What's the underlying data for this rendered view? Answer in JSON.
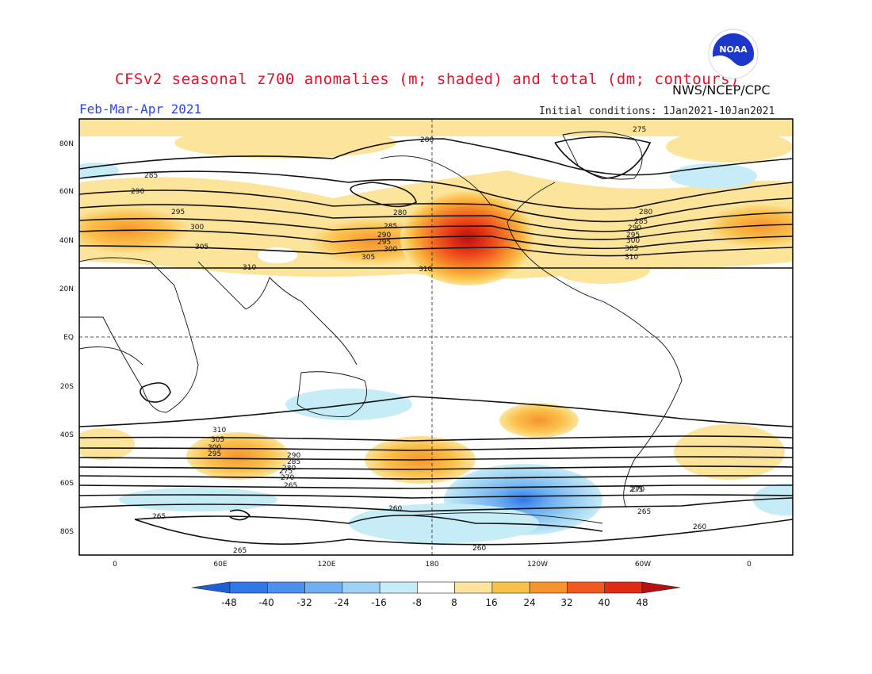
{
  "header": {
    "title": "CFSv2 seasonal z700 anomalies (m; shaded) and total (dm; contours)",
    "agency": "NWS/NCEP/CPC",
    "season": "Feb-Mar-Apr 2021",
    "initial_conditions": "Initial conditions: 1Jan2021-10Jan2021"
  },
  "logo": {
    "icon": "noaa-logo-icon",
    "text": "NOAA"
  },
  "map": {
    "lat_labels": [
      "80N",
      "60N",
      "40N",
      "20N",
      "EQ",
      "20S",
      "40S",
      "60S",
      "80S"
    ],
    "lon_labels": [
      "0",
      "60E",
      "120E",
      "180",
      "120W",
      "60W",
      "0"
    ],
    "contour_labels": [
      "280",
      "285",
      "290",
      "295",
      "300",
      "305",
      "310",
      "275",
      "280",
      "285",
      "290",
      "295",
      "300",
      "305",
      "310",
      "310",
      "305",
      "300",
      "295",
      "290",
      "285",
      "280",
      "275",
      "270",
      "265",
      "260",
      "265",
      "265",
      "260",
      "260",
      "310",
      "305",
      "300",
      "295",
      "290",
      "285",
      "280",
      "275",
      "270",
      "265"
    ]
  },
  "colorbar": {
    "ticks": [
      "-48",
      "-40",
      "-32",
      "-24",
      "-16",
      "-8",
      "8",
      "16",
      "24",
      "32",
      "40",
      "48"
    ],
    "colors": [
      "#1f5fd6",
      "#2f78e8",
      "#4a90ee",
      "#6fb0f2",
      "#9ed2f5",
      "#c5ecf7",
      "#ffffff",
      "#fce49a",
      "#fbc04a",
      "#f7942e",
      "#f05a1f",
      "#e02a14",
      "#b80f0f"
    ]
  }
}
